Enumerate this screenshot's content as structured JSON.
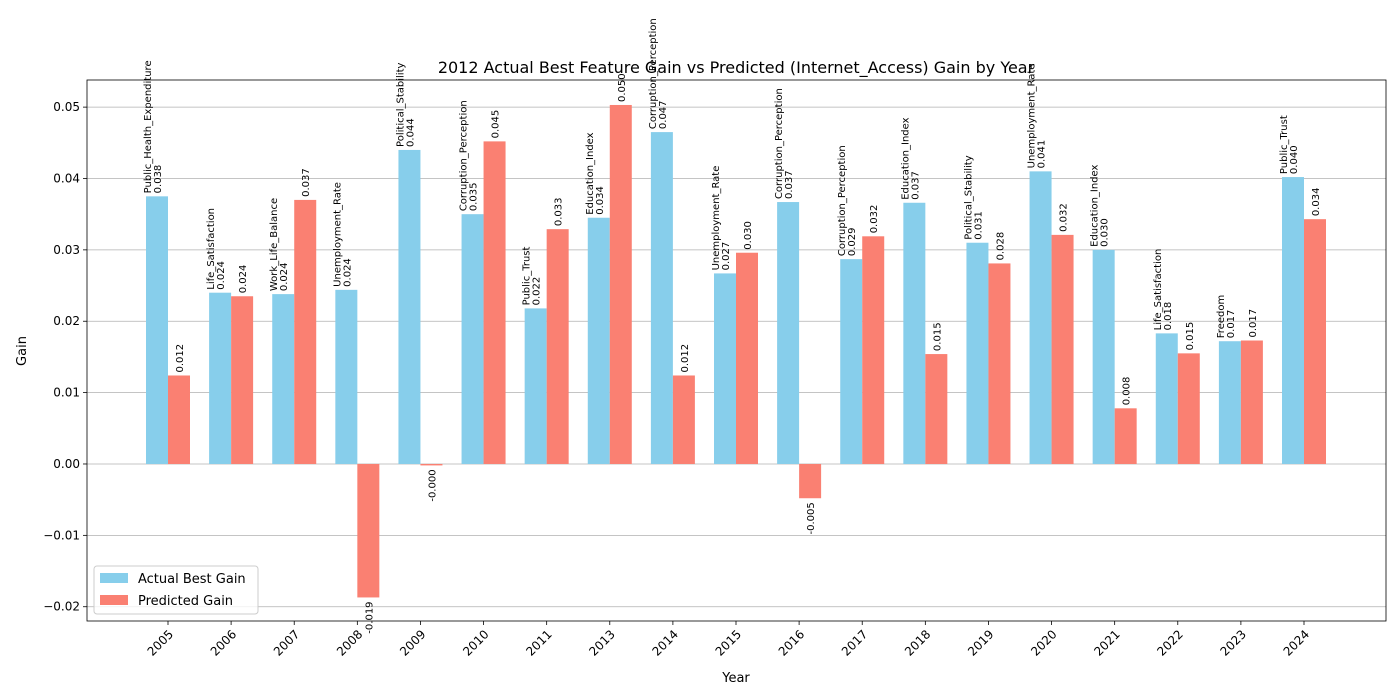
{
  "chart_data": {
    "type": "bar",
    "title": "2012 Actual Best Feature Gain vs Predicted (Internet_Access) Gain by Year",
    "xlabel": "Year",
    "ylabel": "Gain",
    "ylim": [
      -0.022,
      0.0538
    ],
    "yticks": [
      -0.02,
      -0.01,
      0.0,
      0.01,
      0.02,
      0.03,
      0.04,
      0.05
    ],
    "ytick_labels": [
      "−0.02",
      "−0.01",
      "0.00",
      "0.01",
      "0.02",
      "0.03",
      "0.04",
      "0.05"
    ],
    "grid": "y",
    "legend_position": "lower-left",
    "categories": [
      "2005",
      "2006",
      "2007",
      "2008",
      "2009",
      "2010",
      "2011",
      "2013",
      "2014",
      "2015",
      "2016",
      "2017",
      "2018",
      "2019",
      "2020",
      "2021",
      "2022",
      "2023",
      "2024"
    ],
    "series": [
      {
        "name": "Actual Best Gain",
        "color": "#87ceeb",
        "values": [
          0.0375,
          0.024,
          0.0238,
          0.0244,
          0.044,
          0.035,
          0.0218,
          0.0345,
          0.0465,
          0.0267,
          0.0367,
          0.0287,
          0.0366,
          0.031,
          0.041,
          0.03,
          0.0183,
          0.0172,
          0.0402
        ],
        "labels": [
          "0.038",
          "0.024",
          "0.024",
          "0.024",
          "0.044",
          "0.035",
          "0.022",
          "0.034",
          "0.047",
          "0.027",
          "0.037",
          "0.029",
          "0.037",
          "0.031",
          "0.041",
          "0.030",
          "0.018",
          "0.017",
          "0.040"
        ],
        "features": [
          "Public_Health_Expenditure",
          "Life_Satisfaction",
          "Work_Life_Balance",
          "Unemployment_Rate",
          "Political_Stability",
          "Corruption_Perception",
          "Public_Trust",
          "Education_Index",
          "Corruption_Perception",
          "Unemployment_Rate",
          "Corruption_Perception",
          "Corruption_Perception",
          "Education_Index",
          "Political_Stability",
          "Unemployment_Rate",
          "Education_Index",
          "Life_Satisfaction",
          "Freedom",
          "Public_Trust"
        ]
      },
      {
        "name": "Predicted Gain",
        "color": "#fa8072",
        "values": [
          0.0124,
          0.0235,
          0.037,
          -0.0187,
          -0.0002,
          0.0452,
          0.0329,
          0.0503,
          0.0124,
          0.0296,
          -0.0048,
          0.0319,
          0.0154,
          0.0281,
          0.0321,
          0.0078,
          0.0155,
          0.0173,
          0.0343
        ],
        "labels": [
          "0.012",
          "0.024",
          "0.037",
          "-0.019",
          "-0.000",
          "0.045",
          "0.033",
          "0.050",
          "0.012",
          "0.030",
          "-0.005",
          "0.032",
          "0.015",
          "0.028",
          "0.032",
          "0.008",
          "0.015",
          "0.017",
          "0.034"
        ]
      }
    ]
  }
}
